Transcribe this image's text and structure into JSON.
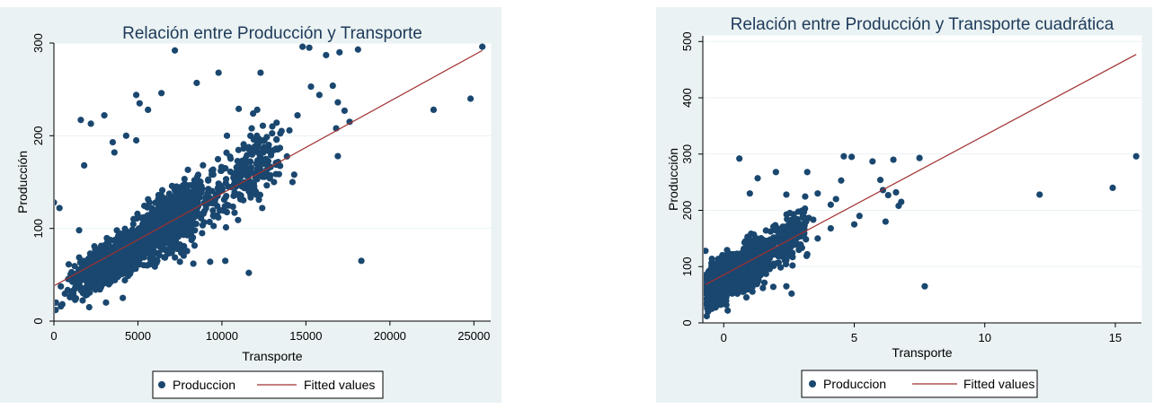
{
  "chart_data": [
    {
      "type": "scatter",
      "title": "Relación entre Producción y Transporte",
      "xlabel": "Transporte",
      "ylabel": "Producción",
      "xlim": [
        0,
        26000
      ],
      "ylim": [
        0,
        300
      ],
      "xticks": [
        "0",
        "5000",
        "10000",
        "15000",
        "20000",
        "25000"
      ],
      "xtick_values": [
        0,
        5000,
        10000,
        15000,
        20000,
        25000
      ],
      "yticks": [
        "0",
        "100",
        "200",
        "300"
      ],
      "ytick_values": [
        0,
        100,
        200,
        300
      ],
      "grid": true,
      "legend_position": "bottom",
      "series": [
        {
          "name": "Produccion",
          "kind": "scatter",
          "color": "#1a476f",
          "points": [
            [
              100,
              12
            ],
            [
              120,
              20
            ],
            [
              0,
              128
            ],
            [
              330,
              122
            ],
            [
              1800,
              168
            ],
            [
              1600,
              217
            ],
            [
              2200,
              213
            ],
            [
              3000,
              222
            ],
            [
              3500,
              193
            ],
            [
              3600,
              182
            ],
            [
              4300,
              200
            ],
            [
              4900,
              195
            ],
            [
              4900,
              244
            ],
            [
              5100,
              235
            ],
            [
              5600,
              228
            ],
            [
              6400,
              246
            ],
            [
              7200,
              292
            ],
            [
              8500,
              257
            ],
            [
              9800,
              268
            ],
            [
              10300,
              200
            ],
            [
              11000,
              229
            ],
            [
              12300,
              268
            ],
            [
              12100,
              228
            ],
            [
              13000,
              210
            ],
            [
              14500,
              222
            ],
            [
              14800,
              296
            ],
            [
              15200,
              295
            ],
            [
              15300,
              253
            ],
            [
              15800,
              244
            ],
            [
              16200,
              287
            ],
            [
              16600,
              254
            ],
            [
              17000,
              290
            ],
            [
              16900,
              236
            ],
            [
              17300,
              227
            ],
            [
              16800,
              208
            ],
            [
              16900,
              178
            ],
            [
              17600,
              215
            ],
            [
              18100,
              293
            ],
            [
              22600,
              228
            ],
            [
              24800,
              240
            ],
            [
              25500,
              296
            ],
            [
              18300,
              65
            ],
            [
              11600,
              52
            ],
            [
              10200,
              65
            ],
            [
              9300,
              64
            ],
            [
              8300,
              62
            ],
            [
              7500,
              64
            ],
            [
              13100,
              150
            ],
            [
              12400,
              122
            ],
            [
              14200,
              150
            ],
            [
              2100,
              15
            ],
            [
              3100,
              20
            ],
            [
              4100,
              25
            ],
            [
              1500,
              98
            ]
          ],
          "cluster": [
            {
              "x_center": 3500,
              "x_spread": 2600,
              "slope": 0.01,
              "intercept": 30,
              "y_spread": 22,
              "n": 900
            },
            {
              "x_center": 7000,
              "x_spread": 2600,
              "slope": 0.0115,
              "intercept": 28,
              "y_spread": 35,
              "n": 700
            },
            {
              "x_center": 11500,
              "x_spread": 2600,
              "slope": 0.0115,
              "intercept": 28,
              "y_spread": 40,
              "n": 200
            }
          ]
        },
        {
          "name": "Fitted values",
          "kind": "line",
          "color": "#a03030",
          "points": [
            [
              0,
              38
            ],
            [
              25500,
              292
            ]
          ]
        }
      ]
    },
    {
      "type": "scatter",
      "title": "Relación entre Producción y Transporte cuadrática",
      "xlabel": "Transporte",
      "ylabel": "Producción",
      "xlim": [
        -0.8,
        16
      ],
      "ylim": [
        0,
        510
      ],
      "xticks": [
        "0",
        "5",
        "10",
        "15"
      ],
      "xtick_values": [
        0,
        5,
        10,
        15
      ],
      "yticks": [
        "0",
        "100",
        "200",
        "300",
        "400",
        "500"
      ],
      "ytick_values": [
        0,
        100,
        200,
        300,
        400,
        500
      ],
      "grid": true,
      "legend_position": "bottom",
      "series": [
        {
          "name": "Produccion",
          "kind": "scatter",
          "color": "#1a476f",
          "points": [
            [
              -0.65,
              12
            ],
            [
              -0.6,
              20
            ],
            [
              -0.7,
              128
            ],
            [
              0.6,
              292
            ],
            [
              1.3,
              257
            ],
            [
              2.0,
              268
            ],
            [
              1.0,
              230
            ],
            [
              3.2,
              268
            ],
            [
              2.4,
              228
            ],
            [
              3.6,
              230
            ],
            [
              4.6,
              296
            ],
            [
              4.9,
              295
            ],
            [
              4.5,
              253
            ],
            [
              4.3,
              220
            ],
            [
              4.1,
              210
            ],
            [
              5.7,
              287
            ],
            [
              6.0,
              254
            ],
            [
              6.1,
              236
            ],
            [
              6.3,
              227
            ],
            [
              6.5,
              290
            ],
            [
              6.6,
              232
            ],
            [
              6.8,
              215
            ],
            [
              6.7,
              208
            ],
            [
              6.2,
              180
            ],
            [
              7.5,
              293
            ],
            [
              7.7,
              65
            ],
            [
              12.1,
              228
            ],
            [
              14.9,
              240
            ],
            [
              15.8,
              296
            ],
            [
              2.6,
              52
            ],
            [
              2.4,
              65
            ],
            [
              1.9,
              64
            ],
            [
              1.5,
              62
            ],
            [
              1.1,
              64
            ],
            [
              3.6,
              150
            ],
            [
              3.2,
              122
            ],
            [
              4.1,
              168
            ],
            [
              5.2,
              190
            ],
            [
              5.0,
              175
            ]
          ],
          "cluster": [
            {
              "x_center": -0.2,
              "x_spread": 0.55,
              "slope": 28,
              "intercept": 78,
              "y_spread": 35,
              "n": 900
            },
            {
              "x_center": 1.0,
              "x_spread": 1.1,
              "slope": 30,
              "intercept": 75,
              "y_spread": 40,
              "n": 600
            },
            {
              "x_center": 2.6,
              "x_spread": 0.9,
              "slope": 30,
              "intercept": 75,
              "y_spread": 40,
              "n": 150
            }
          ]
        },
        {
          "name": "Fitted values",
          "kind": "line",
          "color": "#a03030",
          "points": [
            [
              -0.7,
              68
            ],
            [
              15.8,
              477
            ]
          ]
        }
      ]
    }
  ]
}
